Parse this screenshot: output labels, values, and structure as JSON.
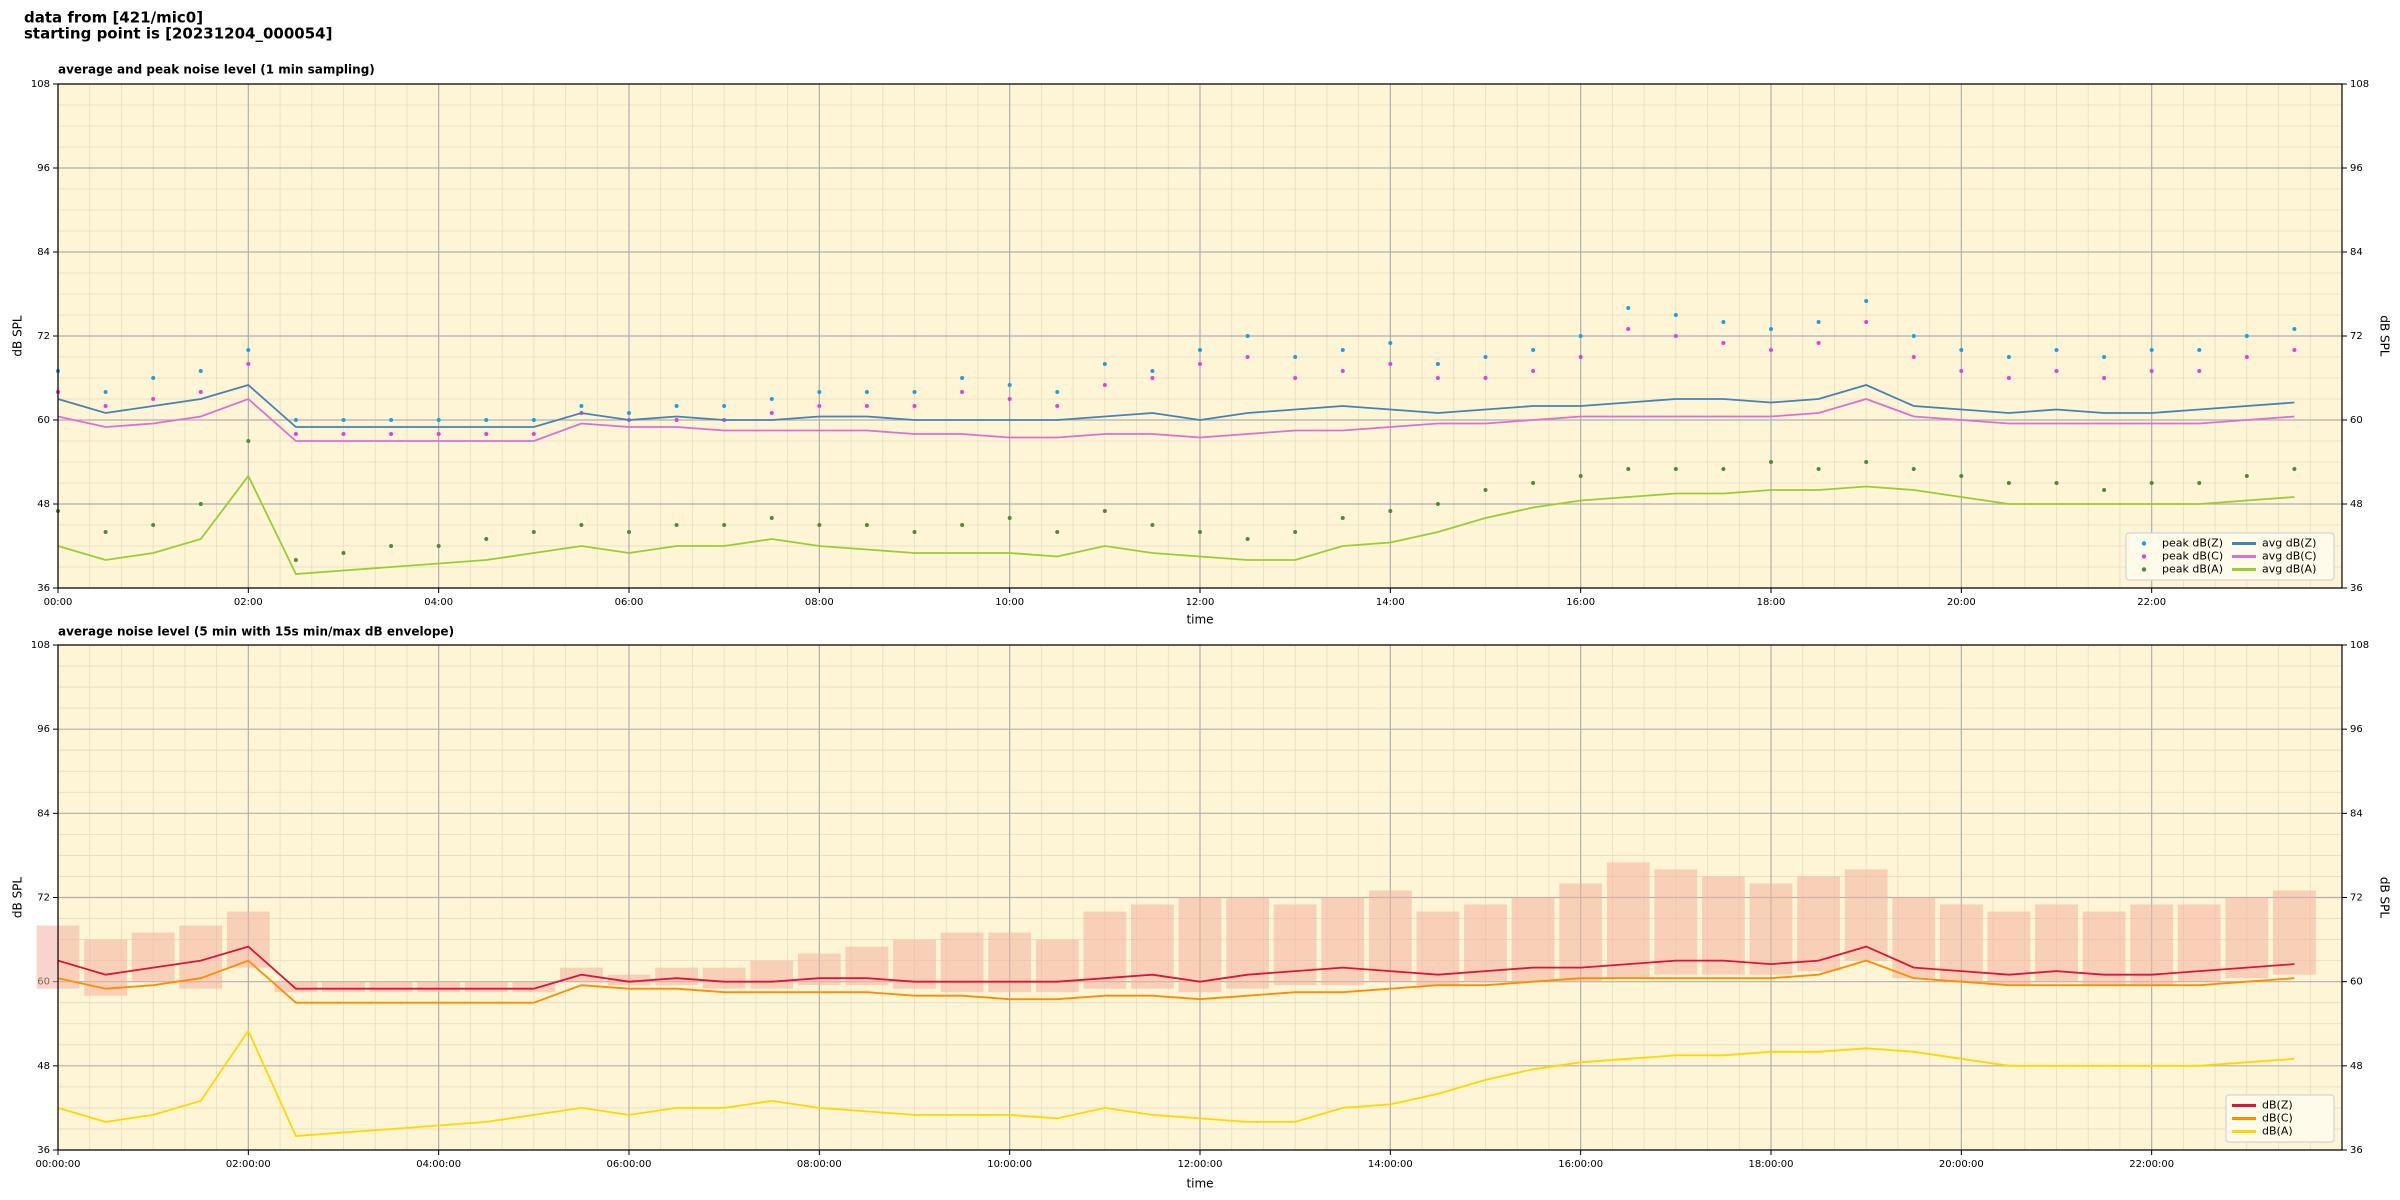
{
  "header": {
    "line1": "data from [421/mic0]",
    "line2": "starting point is [20231204_000054]"
  },
  "chart_data": [
    {
      "type": "line",
      "title": "average and peak noise level (1 min sampling)",
      "xlabel": "time",
      "ylabel": "dB SPL",
      "xlim": [
        0,
        24
      ],
      "ylim": [
        36,
        108
      ],
      "yticks": [
        36,
        48,
        60,
        72,
        84,
        96,
        108
      ],
      "xticks": [
        {
          "value": 0,
          "label": "00:00"
        },
        {
          "value": 2,
          "label": "02:00"
        },
        {
          "value": 4,
          "label": "04:00"
        },
        {
          "value": 6,
          "label": "06:00"
        },
        {
          "value": 8,
          "label": "08:00"
        },
        {
          "value": 10,
          "label": "10:00"
        },
        {
          "value": 12,
          "label": "12:00"
        },
        {
          "value": 14,
          "label": "14:00"
        },
        {
          "value": 16,
          "label": "16:00"
        },
        {
          "value": 18,
          "label": "18:00"
        },
        {
          "value": 20,
          "label": "20:00"
        },
        {
          "value": 22,
          "label": "22:00"
        }
      ],
      "grid": true,
      "legend": "lower right",
      "legend_columns": 2,
      "background": "#fdf5d6",
      "x": [
        0,
        0.5,
        1,
        1.5,
        2,
        2.5,
        3,
        3.5,
        4,
        4.5,
        5,
        5.5,
        6,
        6.5,
        7,
        7.5,
        8,
        8.5,
        9,
        9.5,
        10,
        10.5,
        11,
        11.5,
        12,
        12.5,
        13,
        13.5,
        14,
        14.5,
        15,
        15.5,
        16,
        16.5,
        17,
        17.5,
        18,
        18.5,
        19,
        19.5,
        20,
        20.5,
        21,
        21.5,
        22,
        22.5,
        23,
        23.5
      ],
      "series": [
        {
          "name": "peak dB(Z)",
          "color": "#1f9fe0",
          "mode": "markers",
          "values": [
            67,
            64,
            66,
            67,
            70,
            60,
            60,
            60,
            60,
            60,
            60,
            62,
            61,
            62,
            62,
            63,
            64,
            64,
            64,
            66,
            65,
            64,
            68,
            67,
            70,
            72,
            69,
            70,
            71,
            68,
            69,
            70,
            72,
            76,
            75,
            74,
            73,
            74,
            77,
            72,
            70,
            69,
            70,
            69,
            70,
            70,
            72,
            73
          ]
        },
        {
          "name": "peak dB(C)",
          "color": "#e040e0",
          "mode": "markers",
          "values": [
            64,
            62,
            63,
            64,
            68,
            58,
            58,
            58,
            58,
            58,
            58,
            61,
            60,
            60,
            60,
            61,
            62,
            62,
            62,
            64,
            63,
            62,
            65,
            66,
            68,
            69,
            66,
            67,
            68,
            66,
            66,
            67,
            69,
            73,
            72,
            71,
            70,
            71,
            74,
            69,
            67,
            66,
            67,
            66,
            67,
            67,
            69,
            70
          ]
        },
        {
          "name": "peak dB(A)",
          "color": "#4a8c3c",
          "mode": "markers",
          "values": [
            47,
            44,
            45,
            48,
            57,
            40,
            41,
            42,
            42,
            43,
            44,
            45,
            44,
            45,
            45,
            46,
            45,
            45,
            44,
            45,
            46,
            44,
            47,
            45,
            44,
            43,
            44,
            46,
            47,
            48,
            50,
            51,
            52,
            53,
            53,
            53,
            54,
            53,
            54,
            53,
            52,
            51,
            51,
            50,
            51,
            51,
            52,
            53
          ]
        },
        {
          "name": "avg dB(Z)",
          "color": "#4682b4",
          "mode": "line",
          "values": [
            63,
            61,
            62,
            63,
            65,
            59,
            59,
            59,
            59,
            59,
            59,
            61,
            60,
            60.5,
            60,
            60,
            60.5,
            60.5,
            60,
            60,
            60,
            60,
            60.5,
            61,
            60,
            61,
            61.5,
            62,
            61.5,
            61,
            61.5,
            62,
            62,
            62.5,
            63,
            63,
            62.5,
            63,
            65,
            62,
            61.5,
            61,
            61.5,
            61,
            61,
            61.5,
            62,
            62.5
          ]
        },
        {
          "name": "avg dB(C)",
          "color": "#da70d6",
          "mode": "line",
          "values": [
            60.5,
            59,
            59.5,
            60.5,
            63,
            57,
            57,
            57,
            57,
            57,
            57,
            59.5,
            59,
            59,
            58.5,
            58.5,
            58.5,
            58.5,
            58,
            58,
            57.5,
            57.5,
            58,
            58,
            57.5,
            58,
            58.5,
            58.5,
            59,
            59.5,
            59.5,
            60,
            60.5,
            60.5,
            60.5,
            60.5,
            60.5,
            61,
            63,
            60.5,
            60,
            59.5,
            59.5,
            59.5,
            59.5,
            59.5,
            60,
            60.5
          ]
        },
        {
          "name": "avg dB(A)",
          "color": "#9acd32",
          "mode": "line",
          "values": [
            42,
            40,
            41,
            43,
            52,
            38,
            38.5,
            39,
            39.5,
            40,
            41,
            42,
            41,
            42,
            42,
            43,
            42,
            41.5,
            41,
            41,
            41,
            40.5,
            42,
            41,
            40.5,
            40,
            40,
            42,
            42.5,
            44,
            46,
            47.5,
            48.5,
            49,
            49.5,
            49.5,
            50,
            50,
            50.5,
            50,
            49,
            48,
            48,
            48,
            48,
            48,
            48.5,
            49
          ]
        }
      ]
    },
    {
      "type": "line",
      "title": "average noise level (5 min with 15s min/max dB envelope)",
      "xlabel": "time",
      "ylabel": "dB SPL",
      "xlim": [
        0,
        24
      ],
      "ylim": [
        36,
        108
      ],
      "yticks": [
        36,
        48,
        60,
        72,
        84,
        96,
        108
      ],
      "xticks": [
        {
          "value": 0,
          "label": "00:00:00"
        },
        {
          "value": 2,
          "label": "02:00:00"
        },
        {
          "value": 4,
          "label": "04:00:00"
        },
        {
          "value": 6,
          "label": "06:00:00"
        },
        {
          "value": 8,
          "label": "08:00:00"
        },
        {
          "value": 10,
          "label": "10:00:00"
        },
        {
          "value": 12,
          "label": "12:00:00"
        },
        {
          "value": 14,
          "label": "14:00:00"
        },
        {
          "value": 16,
          "label": "16:00:00"
        },
        {
          "value": 18,
          "label": "18:00:00"
        },
        {
          "value": 20,
          "label": "20:00:00"
        },
        {
          "value": 22,
          "label": "22:00:00"
        }
      ],
      "grid": true,
      "legend": "lower right",
      "legend_columns": 1,
      "background": "#fdf5d6",
      "x": [
        0,
        0.5,
        1,
        1.5,
        2,
        2.5,
        3,
        3.5,
        4,
        4.5,
        5,
        5.5,
        6,
        6.5,
        7,
        7.5,
        8,
        8.5,
        9,
        9.5,
        10,
        10.5,
        11,
        11.5,
        12,
        12.5,
        13,
        13.5,
        14,
        14.5,
        15,
        15.5,
        16,
        16.5,
        17,
        17.5,
        18,
        18.5,
        19,
        19.5,
        20,
        20.5,
        21,
        21.5,
        22,
        22.5,
        23,
        23.5
      ],
      "envelope": {
        "color": "#f4b0a0",
        "lower": [
          59,
          58,
          60,
          59,
          62,
          58.5,
          58.5,
          58.5,
          58.5,
          58.5,
          58.5,
          60,
          59.5,
          59.5,
          59,
          59,
          59.5,
          59.5,
          59,
          58.5,
          58.5,
          58.5,
          59,
          59,
          58.5,
          59,
          59.5,
          59.5,
          60,
          59.5,
          60,
          60,
          60,
          60.5,
          61,
          61,
          61,
          61.5,
          63,
          60.5,
          60,
          59.5,
          60,
          59.5,
          59.5,
          60,
          60.5,
          61
        ],
        "upper": [
          68,
          66,
          67,
          68,
          70,
          60,
          60,
          60,
          60,
          60,
          60,
          62,
          61,
          62,
          62,
          63,
          64,
          65,
          66,
          67,
          67,
          66,
          70,
          71,
          72,
          72,
          71,
          72,
          73,
          70,
          71,
          72,
          74,
          77,
          76,
          75,
          74,
          75,
          76,
          72,
          71,
          70,
          71,
          70,
          71,
          71,
          72,
          73
        ]
      },
      "series": [
        {
          "name": "dB(Z)",
          "color": "#dc143c",
          "mode": "line",
          "values": [
            63,
            61,
            62,
            63,
            65,
            59,
            59,
            59,
            59,
            59,
            59,
            61,
            60,
            60.5,
            60,
            60,
            60.5,
            60.5,
            60,
            60,
            60,
            60,
            60.5,
            61,
            60,
            61,
            61.5,
            62,
            61.5,
            61,
            61.5,
            62,
            62,
            62.5,
            63,
            63,
            62.5,
            63,
            65,
            62,
            61.5,
            61,
            61.5,
            61,
            61,
            61.5,
            62,
            62.5
          ]
        },
        {
          "name": "dB(C)",
          "color": "#ff8c00",
          "mode": "line",
          "values": [
            60.5,
            59,
            59.5,
            60.5,
            63,
            57,
            57,
            57,
            57,
            57,
            57,
            59.5,
            59,
            59,
            58.5,
            58.5,
            58.5,
            58.5,
            58,
            58,
            57.5,
            57.5,
            58,
            58,
            57.5,
            58,
            58.5,
            58.5,
            59,
            59.5,
            59.5,
            60,
            60.5,
            60.5,
            60.5,
            60.5,
            60.5,
            61,
            63,
            60.5,
            60,
            59.5,
            59.5,
            59.5,
            59.5,
            59.5,
            60,
            60.5
          ]
        },
        {
          "name": "dB(A)",
          "color": "#ffd700",
          "mode": "line",
          "values": [
            42,
            40,
            41,
            43,
            53,
            38,
            38.5,
            39,
            39.5,
            40,
            41,
            42,
            41,
            42,
            42,
            43,
            42,
            41.5,
            41,
            41,
            41,
            40.5,
            42,
            41,
            40.5,
            40,
            40,
            42,
            42.5,
            44,
            46,
            47.5,
            48.5,
            49,
            49.5,
            49.5,
            50,
            50,
            50.5,
            50,
            49,
            48,
            48,
            48,
            48,
            48,
            48.5,
            49
          ]
        }
      ]
    }
  ]
}
